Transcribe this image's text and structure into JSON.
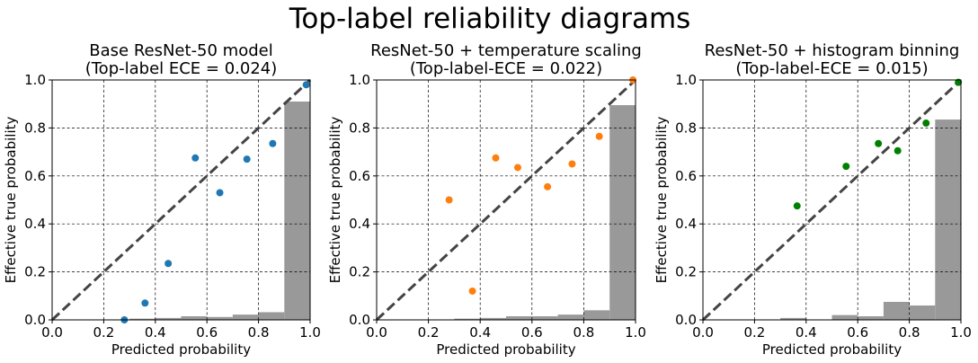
{
  "suptitle": "Top-label reliability diagrams",
  "colors": {
    "diagonal": "#444444",
    "histogram": "#999999",
    "grid": "#000000"
  },
  "chart_data": [
    {
      "type": "scatter",
      "title_line1": "Base ResNet-50 model",
      "title_line2": "(Top-label ECE = 0.024)",
      "xlabel": "Predicted probability",
      "ylabel": "Effective true probability",
      "xlim": [
        0,
        1
      ],
      "ylim": [
        0,
        1
      ],
      "xticks": [
        "0.0",
        "0.2",
        "0.4",
        "0.6",
        "0.8",
        "1.0"
      ],
      "yticks": [
        "0.0",
        "0.2",
        "0.4",
        "0.6",
        "0.8",
        "1.0"
      ],
      "grid": true,
      "color": "#1f77b4",
      "points": [
        {
          "x": 0.28,
          "y": 0.0
        },
        {
          "x": 0.36,
          "y": 0.07
        },
        {
          "x": 0.45,
          "y": 0.235
        },
        {
          "x": 0.555,
          "y": 0.675
        },
        {
          "x": 0.65,
          "y": 0.53
        },
        {
          "x": 0.755,
          "y": 0.67
        },
        {
          "x": 0.855,
          "y": 0.735
        },
        {
          "x": 0.985,
          "y": 0.98
        }
      ],
      "histogram": {
        "bin_edges": [
          0.3,
          0.4,
          0.5,
          0.6,
          0.7,
          0.8,
          0.9,
          1.0
        ],
        "heights": [
          0.005,
          0.008,
          0.015,
          0.012,
          0.022,
          0.032,
          0.91
        ]
      }
    },
    {
      "type": "scatter",
      "title_line1": "ResNet-50 + temperature scaling",
      "title_line2": "(Top-label-ECE = 0.022)",
      "xlabel": "Predicted probability",
      "ylabel": "Effective true probability",
      "xlim": [
        0,
        1
      ],
      "ylim": [
        0,
        1
      ],
      "xticks": [
        "0.0",
        "0.2",
        "0.4",
        "0.6",
        "0.8",
        "1.0"
      ],
      "yticks": [
        "0.0",
        "0.2",
        "0.4",
        "0.6",
        "0.8",
        "1.0"
      ],
      "grid": true,
      "color": "#ff7f0e",
      "points": [
        {
          "x": 0.28,
          "y": 0.5
        },
        {
          "x": 0.37,
          "y": 0.12
        },
        {
          "x": 0.46,
          "y": 0.675
        },
        {
          "x": 0.545,
          "y": 0.635
        },
        {
          "x": 0.66,
          "y": 0.555
        },
        {
          "x": 0.755,
          "y": 0.65
        },
        {
          "x": 0.86,
          "y": 0.765
        },
        {
          "x": 0.99,
          "y": 1.0
        }
      ],
      "histogram": {
        "bin_edges": [
          0.3,
          0.4,
          0.5,
          0.6,
          0.7,
          0.8,
          0.9,
          1.0
        ],
        "heights": [
          0.005,
          0.008,
          0.015,
          0.015,
          0.022,
          0.04,
          0.895
        ]
      }
    },
    {
      "type": "scatter",
      "title_line1": "ResNet-50 + histogram binning",
      "title_line2": "(Top-label-ECE = 0.015)",
      "xlabel": "Predicted probability",
      "ylabel": "Effective true probability",
      "xlim": [
        0,
        1
      ],
      "ylim": [
        0,
        1
      ],
      "xticks": [
        "0.0",
        "0.2",
        "0.4",
        "0.6",
        "0.8",
        "1.0"
      ],
      "yticks": [
        "0.0",
        "0.2",
        "0.4",
        "0.6",
        "0.8",
        "1.0"
      ],
      "grid": true,
      "color": "#008000",
      "points": [
        {
          "x": 0.365,
          "y": 0.475
        },
        {
          "x": 0.555,
          "y": 0.64
        },
        {
          "x": 0.68,
          "y": 0.735
        },
        {
          "x": 0.755,
          "y": 0.705
        },
        {
          "x": 0.865,
          "y": 0.82
        },
        {
          "x": 0.99,
          "y": 0.99
        }
      ],
      "histogram": {
        "bin_edges": [
          0.3,
          0.4,
          0.5,
          0.6,
          0.7,
          0.8,
          0.9,
          1.0
        ],
        "heights": [
          0.008,
          0.0,
          0.02,
          0.015,
          0.075,
          0.06,
          0.835
        ]
      }
    }
  ]
}
